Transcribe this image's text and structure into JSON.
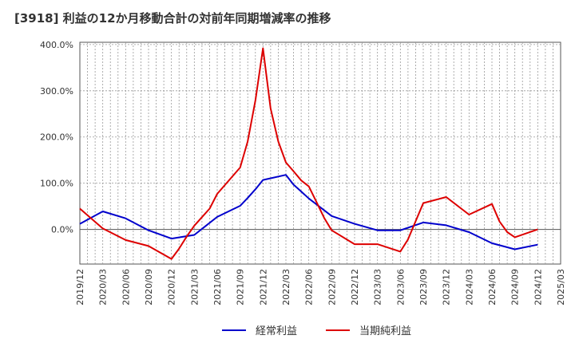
{
  "title": "[3918]  利益の12か月移動合計の対前年同期増減率の推移",
  "chart_data": {
    "type": "line",
    "x": [
      "2019/12",
      "2020/03",
      "2020/06",
      "2020/09",
      "2020/12",
      "2021/03",
      "2021/06",
      "2021/09",
      "2021/12",
      "2022/03",
      "2022/06",
      "2022/09",
      "2022/12",
      "2023/03",
      "2023/06",
      "2023/09",
      "2023/12",
      "2024/03",
      "2024/06",
      "2024/09",
      "2024/12",
      "2025/03"
    ],
    "x_labels": [
      "2019/12",
      "2020/03",
      "2020/06",
      "2020/09",
      "2020/12",
      "2021/03",
      "2021/06",
      "2021/09",
      "2021/12",
      "2022/03",
      "2022/06",
      "2022/09",
      "2022/12",
      "2023/03",
      "2023/06",
      "2023/09",
      "2023/12",
      "2024/03",
      "2024/06",
      "2024/09",
      "2024/12",
      "2025/03"
    ],
    "ylim": [
      -75,
      405
    ],
    "yticks": [
      0,
      100,
      200,
      300,
      400
    ],
    "ytick_labels": [
      "0.0%",
      "100.0%",
      "200.0%",
      "300.0%",
      "400.0%"
    ],
    "grid": true,
    "legend_position": "bottom",
    "series": [
      {
        "name": "経常利益",
        "color": "#0000cc",
        "points": [
          [
            0,
            12
          ],
          [
            1,
            39
          ],
          [
            2,
            24
          ],
          [
            3,
            -2
          ],
          [
            4,
            -20
          ],
          [
            5,
            -12
          ],
          [
            6,
            27
          ],
          [
            7,
            51
          ],
          [
            7.33,
            68
          ],
          [
            7.67,
            87
          ],
          [
            8,
            107
          ],
          [
            9,
            118
          ],
          [
            9.33,
            97
          ],
          [
            9.67,
            82
          ],
          [
            10,
            67
          ],
          [
            11,
            29
          ],
          [
            12,
            12
          ],
          [
            13,
            -2
          ],
          [
            14,
            -2
          ],
          [
            15,
            15
          ],
          [
            16,
            9
          ],
          [
            17,
            -6
          ],
          [
            18,
            -30
          ],
          [
            19,
            -43
          ],
          [
            20,
            -33
          ]
        ]
      },
      {
        "name": "当期純利益",
        "color": "#dd0000",
        "points": [
          [
            0,
            45
          ],
          [
            1,
            2
          ],
          [
            2,
            -23
          ],
          [
            3,
            -36
          ],
          [
            4,
            -64
          ],
          [
            4.33,
            -42
          ],
          [
            4.67,
            -15
          ],
          [
            5,
            8
          ],
          [
            5.67,
            45
          ],
          [
            6,
            77
          ],
          [
            7,
            134
          ],
          [
            7.33,
            190
          ],
          [
            7.67,
            280
          ],
          [
            8,
            392
          ],
          [
            8.33,
            262
          ],
          [
            8.67,
            190
          ],
          [
            9,
            145
          ],
          [
            9.33,
            126
          ],
          [
            9.67,
            106
          ],
          [
            10,
            93
          ],
          [
            10.33,
            60
          ],
          [
            10.67,
            25
          ],
          [
            11,
            -2
          ],
          [
            12,
            -32
          ],
          [
            13,
            -32
          ],
          [
            14,
            -48
          ],
          [
            14.33,
            -22
          ],
          [
            15,
            57
          ],
          [
            16,
            70
          ],
          [
            17,
            32
          ],
          [
            18,
            55
          ],
          [
            18.33,
            17
          ],
          [
            18.67,
            -6
          ],
          [
            19,
            -17
          ],
          [
            20,
            0
          ]
        ]
      }
    ]
  }
}
